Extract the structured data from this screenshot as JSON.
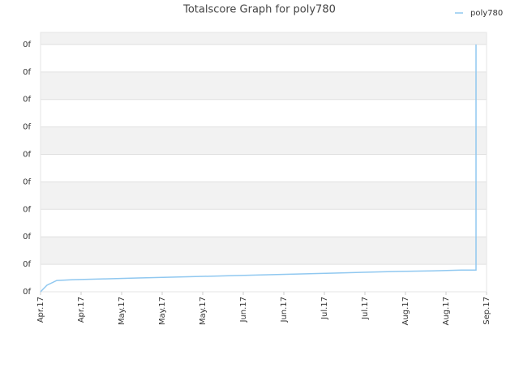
{
  "chart_data": {
    "type": "line",
    "title": "Totalscore Graph for poly780",
    "x": [
      0,
      0.16,
      0.4,
      0.8,
      1.6,
      2.41,
      3.22,
      4.02,
      4.83,
      5.63,
      6.44,
      7.24,
      8.05,
      8.85,
      9.66,
      10.38,
      10.74,
      10.74
    ],
    "series": [
      {
        "name": "poly780",
        "color": "#90c8f0",
        "values": [
          0,
          0.24,
          0.41,
          0.44,
          0.47,
          0.5,
          0.53,
          0.56,
          0.59,
          0.62,
          0.65,
          0.68,
          0.71,
          0.74,
          0.76,
          0.79,
          0.79,
          9
        ]
      }
    ],
    "xlim": [
      0,
      11
    ],
    "xticks": [
      {
        "value": 0,
        "label": "Apr.17"
      },
      {
        "value": 1,
        "label": "Apr.17"
      },
      {
        "value": 2,
        "label": "May.17"
      },
      {
        "value": 3,
        "label": "May.17"
      },
      {
        "value": 4,
        "label": "May.17"
      },
      {
        "value": 5,
        "label": "Jun.17"
      },
      {
        "value": 6,
        "label": "Jun.17"
      },
      {
        "value": 7,
        "label": "Jul.17"
      },
      {
        "value": 8,
        "label": "Jul.17"
      },
      {
        "value": 9,
        "label": "Aug.17"
      },
      {
        "value": 10,
        "label": "Aug.17"
      },
      {
        "value": 11,
        "label": "Sep.17"
      }
    ],
    "ylim": [
      0,
      9.44
    ],
    "yticks": [
      {
        "value": 0,
        "label": "0f"
      },
      {
        "value": 1,
        "label": "0f"
      },
      {
        "value": 2,
        "label": "0f"
      },
      {
        "value": 3,
        "label": "0f"
      },
      {
        "value": 4,
        "label": "0f"
      },
      {
        "value": 5,
        "label": "0f"
      },
      {
        "value": 6,
        "label": "0f"
      },
      {
        "value": 7,
        "label": "0f"
      },
      {
        "value": 8,
        "label": "0f"
      },
      {
        "value": 9,
        "label": "0f"
      }
    ],
    "grid": true,
    "legend": "top-right"
  }
}
